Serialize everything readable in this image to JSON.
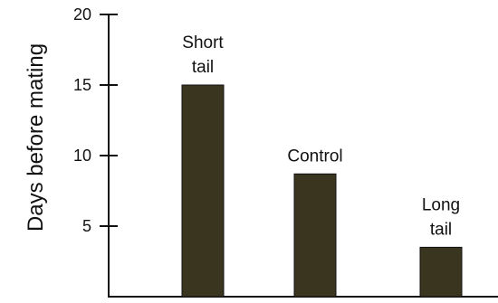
{
  "chart_data": {
    "type": "bar",
    "categories": [
      "Short tail",
      "Control",
      "Long tail"
    ],
    "category_label_lines": [
      [
        "Short",
        "tail"
      ],
      [
        "Control"
      ],
      [
        "Long",
        "tail"
      ]
    ],
    "values": [
      15,
      8.7,
      3.5
    ],
    "ylabel": "Days before mating",
    "xlabel": "",
    "ylim": [
      0,
      20
    ],
    "yticks": [
      5,
      10,
      15,
      20
    ],
    "grid": false,
    "legend": "none",
    "colors": {
      "bar_fill": "#39351e",
      "bar_stroke": "#111111",
      "axis": "#111111"
    }
  }
}
